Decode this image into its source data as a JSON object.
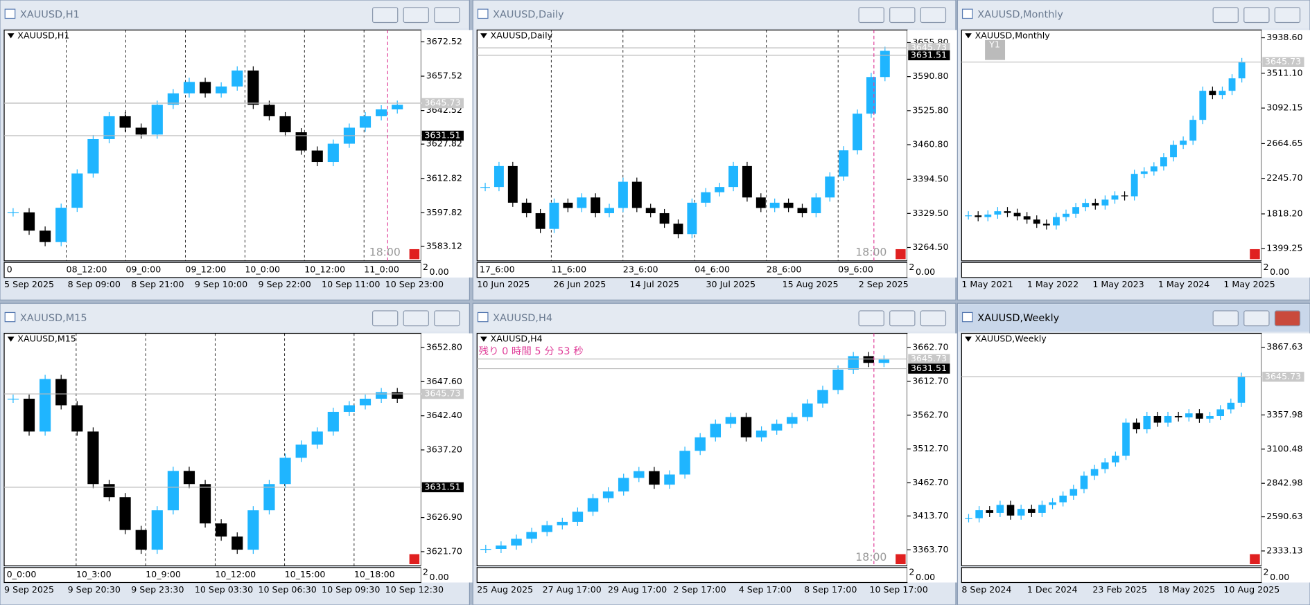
{
  "windows": [
    {
      "title": "XAUUSD,H1",
      "label": "XAUUSD,H1",
      "ylim": [
        3576.8,
        3677.7
      ],
      "yticks": [
        3672.52,
        3657.52,
        3642.52,
        3627.82,
        3612.82,
        3597.82,
        3583.12
      ],
      "bid": 3645.73,
      "ask": 3631.51,
      "time_marker": "18:00",
      "sub_labels": [
        "2",
        "0.00"
      ],
      "inner_times": [
        "0",
        "08_12:00",
        "09_0:00",
        "09_12:00",
        "10_0:00",
        "10_12:00",
        "11_0:00"
      ],
      "dates": [
        "5 Sep 2025",
        "8 Sep 09:00",
        "8 Sep 21:00",
        "9 Sep 10:00",
        "9 Sep 22:00",
        "10 Sep 11:00",
        "10 Sep 23:00"
      ],
      "closes": [
        3598,
        3590,
        3585,
        3600,
        3615,
        3630,
        3640,
        3635,
        3632,
        3645,
        3650,
        3655,
        3650,
        3653,
        3660,
        3645,
        3640,
        3633,
        3625,
        3620,
        3628,
        3635,
        3640,
        3643,
        3645
      ]
    },
    {
      "title": "XAUUSD,Daily",
      "label": "XAUUSD,Daily",
      "ylim": [
        3239,
        3679.8
      ],
      "yticks": [
        {
          "value": 3655.8,
          "label": "3655.80"
        },
        {
          "value": 3590.8,
          "label": "3590.80"
        },
        {
          "value": 3525.8,
          "label": "3525.80"
        },
        {
          "value": 3460.8,
          "label": "3460.80"
        },
        {
          "value": 3394.5,
          "label": "3394.50"
        },
        {
          "value": 3329.5,
          "label": "3329.50"
        },
        {
          "value": 3264.5,
          "label": "3264.50"
        }
      ],
      "bid": 3645.73,
      "ask": 3631.51,
      "time_marker": "18:00",
      "sub_labels": [
        "2",
        "0.00"
      ],
      "inner_times": [
        "17_6:00",
        "11_6:00",
        "23_6:00",
        "04_6:00",
        "28_6:00",
        "09_6:00"
      ],
      "dates": [
        "10 Jun 2025",
        "26 Jun 2025",
        "14 Jul 2025",
        "30 Jul 2025",
        "15 Aug 2025",
        "2 Sep 2025"
      ],
      "closes": [
        3380,
        3420,
        3350,
        3330,
        3300,
        3350,
        3340,
        3360,
        3330,
        3340,
        3390,
        3340,
        3330,
        3310,
        3290,
        3350,
        3370,
        3380,
        3420,
        3360,
        3340,
        3350,
        3340,
        3330,
        3360,
        3400,
        3450,
        3520,
        3590,
        3640
      ]
    },
    {
      "title": "XAUUSD,Monthly",
      "label": "XAUUSD,Monthly",
      "button": "Y1",
      "ylim": [
        1253,
        4032
      ],
      "yticks": [
        {
          "value": 3938.6,
          "label": "3938.60"
        },
        {
          "value": 3511.1,
          "label": "3511.10"
        },
        3092.15,
        2664.65,
        {
          "value": 2245.7,
          "label": "2245.70"
        },
        {
          "value": 1818.2,
          "label": "1818.20"
        },
        1399.25
      ],
      "bid": 3645.73,
      "sub_labels": [
        "2",
        "0.00"
      ],
      "inner_times": [],
      "dates": [
        "1 May 2021",
        "1 May 2022",
        "1 May 2023",
        "1 May 2024",
        "1 May 2025"
      ],
      "closes": [
        1800,
        1780,
        1810,
        1850,
        1830,
        1790,
        1750,
        1700,
        1680,
        1780,
        1820,
        1900,
        1950,
        1920,
        1990,
        2040,
        2030,
        2300,
        2330,
        2390,
        2500,
        2650,
        2700,
        2950,
        3300,
        3250,
        3300,
        3450,
        3645
      ]
    },
    {
      "title": "XAUUSD,M15",
      "label": "XAUUSD,M15",
      "ylim": [
        3619.54,
        3654.96
      ],
      "yticks": [
        {
          "value": 3652.8,
          "label": "3652.80"
        },
        {
          "value": 3647.6,
          "label": "3647.60"
        },
        {
          "value": 3642.4,
          "label": "3642.40"
        },
        {
          "value": 3637.2,
          "label": "3637.20"
        },
        {
          "value": 3626.9,
          "label": "3626.90"
        },
        {
          "value": 3621.7,
          "label": "3621.70"
        }
      ],
      "bid": 3645.73,
      "ask": 3631.51,
      "sub_labels": [
        "2",
        "0.00"
      ],
      "inner_times": [
        "0_0:00",
        "10_3:00",
        "10_9:00",
        "10_12:00",
        "10_15:00",
        "10_18:00"
      ],
      "dates": [
        "9 Sep 2025",
        "9 Sep 20:30",
        "9 Sep 23:30",
        "10 Sep 03:30",
        "10 Sep 06:30",
        "10 Sep 09:30",
        "10 Sep 12:30"
      ],
      "closes": [
        3645,
        3640,
        3648,
        3644,
        3640,
        3632,
        3630,
        3625,
        3622,
        3628,
        3634,
        3632,
        3626,
        3624,
        3622,
        3628,
        3632,
        3636,
        3638,
        3640,
        3643,
        3644,
        3645,
        3646,
        3645
      ]
    },
    {
      "title": "XAUUSD,H4",
      "label": "XAUUSD,H4",
      "countdown": "残り 0 時間 5 分 53 秒",
      "ylim": [
        3340,
        3683.7
      ],
      "yticks": [
        {
          "value": 3662.7,
          "label": "3662.70"
        },
        {
          "value": 3612.7,
          "label": "3612.70"
        },
        {
          "value": 3562.7,
          "label": "3562.70"
        },
        {
          "value": 3512.7,
          "label": "3512.70"
        },
        {
          "value": 3462.7,
          "label": "3462.70"
        },
        {
          "value": 3413.7,
          "label": "3413.70"
        },
        {
          "value": 3363.7,
          "label": "3363.70"
        }
      ],
      "bid": 3645.73,
      "ask": 3631.51,
      "time_marker": "18:00",
      "sub_labels": [
        "2",
        "0.00"
      ],
      "inner_times": [],
      "dates": [
        "25 Aug 2025",
        "27 Aug 17:00",
        "29 Aug 17:00",
        "2 Sep 17:00",
        "4 Sep 17:00",
        "8 Sep 17:00",
        "10 Sep 17:00"
      ],
      "closes": [
        3365,
        3370,
        3380,
        3390,
        3400,
        3405,
        3420,
        3440,
        3450,
        3470,
        3480,
        3460,
        3475,
        3510,
        3530,
        3550,
        3560,
        3530,
        3540,
        3550,
        3560,
        3580,
        3600,
        3630,
        3650,
        3640,
        3645
      ]
    },
    {
      "title": "XAUUSD,Weekly",
      "label": "XAUUSD,Weekly",
      "active": true,
      "ylim": [
        2221,
        3973
      ],
      "yticks": [
        3867.63,
        3357.98,
        3100.48,
        2842.98,
        2590.63,
        2333.13
      ],
      "bid": 3645.73,
      "sub_labels": [
        "2",
        "0.00"
      ],
      "inner_times": [],
      "dates": [
        "8 Sep 2024",
        "1 Dec 2024",
        "23 Feb 2025",
        "18 May 2025",
        "10 Aug 2025"
      ],
      "closes": [
        2580,
        2640,
        2620,
        2680,
        2600,
        2650,
        2620,
        2680,
        2700,
        2750,
        2800,
        2900,
        2950,
        3000,
        3050,
        3300,
        3250,
        3350,
        3300,
        3350,
        3340,
        3370,
        3330,
        3350,
        3400,
        3450,
        3645
      ]
    }
  ]
}
